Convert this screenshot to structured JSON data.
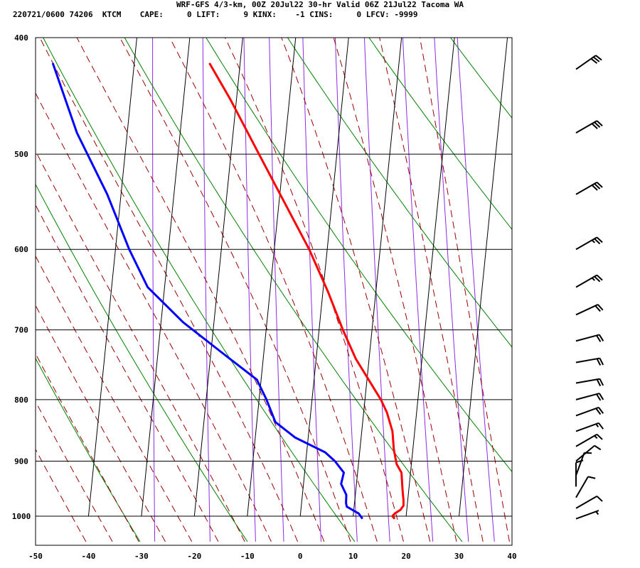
{
  "header": {
    "title": "WRF-GFS 4/3-km, 00Z 20Jul22 30-hr Valid 06Z 21Jul22 Tacoma WA",
    "station_line": "220721/0600 74206  KTCM    CAPE:     0 LIFT:     9 KINX:    -1 CINS:     0 LFCV: -9999"
  },
  "chart_data": {
    "type": "line",
    "subtype": "skew-T log-p sounding",
    "title": "WRF-GFS 4/3-km, 00Z 20Jul22 30-hr Valid 06Z 21Jul22 Tacoma WA",
    "xlabel": "",
    "ylabel": "",
    "x_ticks": [
      -50,
      -40,
      -30,
      -20,
      -10,
      0,
      10,
      20,
      30,
      40
    ],
    "y_ticks": [
      400,
      500,
      600,
      700,
      800,
      900,
      1000
    ],
    "xlim": [
      -50,
      40
    ],
    "ylim_pressure_hpa": [
      1040,
      400
    ],
    "y_scale": "log",
    "grid": true,
    "colors": {
      "temperature": "#ff0000",
      "dewpoint": "#0000ff",
      "dry_adiabats": "#008000",
      "moist_adiabats": "#990000",
      "mixing_ratio": "#8a2be2",
      "grid": "#000000"
    },
    "series": [
      {
        "key": "temperature",
        "points": [
          [
            1005,
            17.9
          ],
          [
            1000,
            17.4
          ],
          [
            995,
            17.8
          ],
          [
            988,
            18.8
          ],
          [
            980,
            19.3
          ],
          [
            970,
            19.2
          ],
          [
            950,
            18.8
          ],
          [
            920,
            18.3
          ],
          [
            905,
            17.2
          ],
          [
            880,
            16.4
          ],
          [
            850,
            15.8
          ],
          [
            820,
            14.4
          ],
          [
            800,
            13.0
          ],
          [
            770,
            10.3
          ],
          [
            740,
            7.5
          ],
          [
            700,
            4.5
          ],
          [
            650,
            0.9
          ],
          [
            600,
            -3.4
          ],
          [
            550,
            -8.8
          ],
          [
            500,
            -14.7
          ],
          [
            450,
            -21.2
          ],
          [
            420,
            -25.8
          ]
        ]
      },
      {
        "key": "dewpoint",
        "points": [
          [
            1005,
            11.8
          ],
          [
            995,
            11.0
          ],
          [
            982,
            8.6
          ],
          [
            975,
            8.4
          ],
          [
            960,
            8.3
          ],
          [
            940,
            7.1
          ],
          [
            920,
            7.4
          ],
          [
            900,
            5.5
          ],
          [
            885,
            3.5
          ],
          [
            860,
            -2.5
          ],
          [
            835,
            -6.5
          ],
          [
            800,
            -8.6
          ],
          [
            770,
            -10.8
          ],
          [
            735,
            -17.2
          ],
          [
            690,
            -25.8
          ],
          [
            645,
            -33.2
          ],
          [
            600,
            -37.4
          ],
          [
            540,
            -42.6
          ],
          [
            480,
            -49.5
          ],
          [
            420,
            -55.4
          ]
        ]
      }
    ],
    "wind_barbs": [
      {
        "pressure": 1005,
        "dir_deg": 250,
        "speed_kt": 5
      },
      {
        "pressure": 985,
        "dir_deg": 240,
        "speed_kt": 10
      },
      {
        "pressure": 965,
        "dir_deg": 210,
        "speed_kt": 10
      },
      {
        "pressure": 945,
        "dir_deg": 180,
        "speed_kt": 10
      },
      {
        "pressure": 925,
        "dir_deg": 200,
        "speed_kt": 10
      },
      {
        "pressure": 900,
        "dir_deg": 230,
        "speed_kt": 10
      },
      {
        "pressure": 875,
        "dir_deg": 240,
        "speed_kt": 15
      },
      {
        "pressure": 850,
        "dir_deg": 250,
        "speed_kt": 15
      },
      {
        "pressure": 825,
        "dir_deg": 250,
        "speed_kt": 20
      },
      {
        "pressure": 800,
        "dir_deg": 255,
        "speed_kt": 20
      },
      {
        "pressure": 775,
        "dir_deg": 260,
        "speed_kt": 20
      },
      {
        "pressure": 745,
        "dir_deg": 260,
        "speed_kt": 20
      },
      {
        "pressure": 715,
        "dir_deg": 255,
        "speed_kt": 20
      },
      {
        "pressure": 680,
        "dir_deg": 245,
        "speed_kt": 20
      },
      {
        "pressure": 645,
        "dir_deg": 240,
        "speed_kt": 25
      },
      {
        "pressure": 600,
        "dir_deg": 240,
        "speed_kt": 25
      },
      {
        "pressure": 540,
        "dir_deg": 240,
        "speed_kt": 30
      },
      {
        "pressure": 480,
        "dir_deg": 240,
        "speed_kt": 30
      },
      {
        "pressure": 425,
        "dir_deg": 235,
        "speed_kt": 30
      }
    ]
  }
}
